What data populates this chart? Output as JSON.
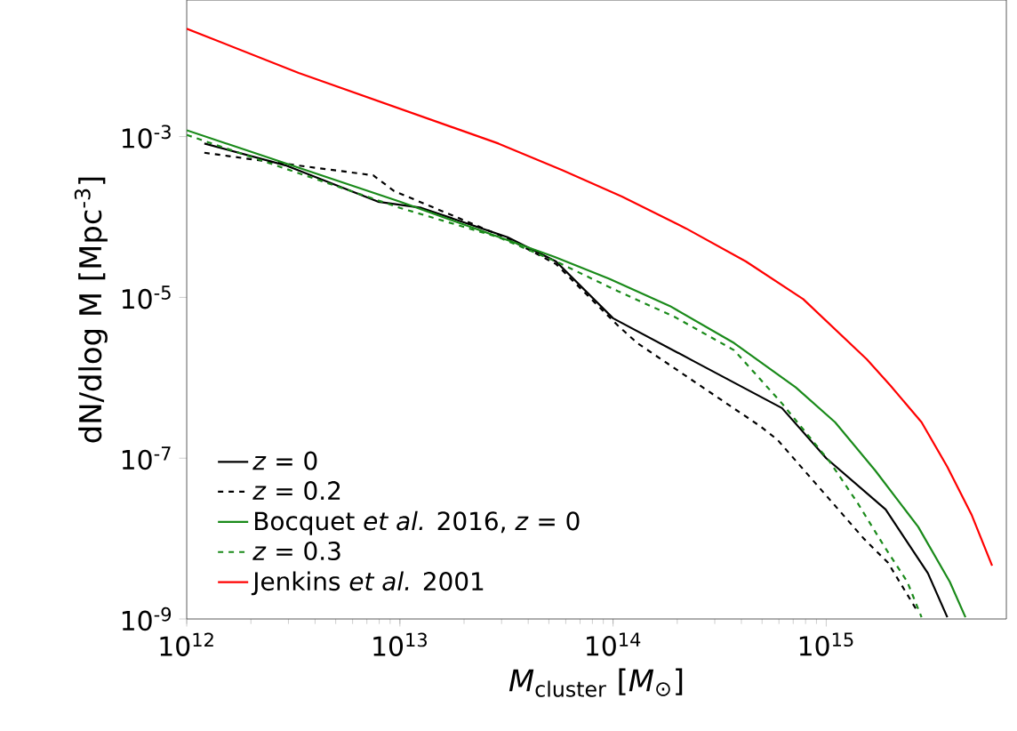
{
  "chart_data": {
    "type": "line",
    "xlabel": "*M*$_{cluster}$ [*M*$_{⊙}$]",
    "ylabel": "dN/dlog M [Mpc$^{-3}$]",
    "log": "xy",
    "xlim": [
      1000000000000.0,
      7000000000000000.0
    ],
    "ylim": [
      1e-09,
      0.05
    ],
    "xticks": [
      {
        "value": 1000000000000.0,
        "label": "10$^{12}$"
      },
      {
        "value": 10000000000000.0,
        "label": "10$^{13}$"
      },
      {
        "value": 100000000000000.0,
        "label": "10$^{14}$"
      },
      {
        "value": 1000000000000000.0,
        "label": "10$^{15}$"
      }
    ],
    "yticks": [
      {
        "value": 1e-09,
        "label": "10$^{-9}$"
      },
      {
        "value": 1e-07,
        "label": "10$^{-7}$"
      },
      {
        "value": 1e-05,
        "label": "10$^{-5}$"
      },
      {
        "value": 0.001,
        "label": "10$^{-3}$"
      }
    ],
    "grid": false,
    "legend": "bottom left",
    "series": [
      {
        "name": "*z* = 0",
        "color": "#000000",
        "line_style": "solid",
        "x": [
          1210000000000.0,
          2900000000000.0,
          7900000000000.0,
          12600000000000.0,
          32000000000000.0,
          54000000000000.0,
          100000000000000.0,
          240000000000000.0,
          620000000000000.0,
          1000000000000000.0,
          1900000000000000.0,
          3000000000000000.0,
          3700000000000000.0
        ],
        "values": [
          0.00082,
          0.00044,
          0.000155,
          0.00013,
          5.6e-05,
          2.8e-05,
          5.5e-06,
          1.6e-06,
          4.2e-07,
          1e-07,
          2.3e-08,
          3.7e-09,
          1.05e-09
        ]
      },
      {
        "name": "*z* = 0.2",
        "color": "#000000",
        "line_style": "dashed",
        "x": [
          1210000000000.0,
          2400000000000.0,
          7500000000000.0,
          9400000000000.0,
          32000000000000.0,
          54000000000000.0,
          105000000000000.0,
          130000000000000.0,
          490000000000000.0,
          590000000000000.0,
          1500000000000000.0,
          1950000000000000.0,
          2700000000000000.0
        ],
        "values": [
          0.00063,
          0.00049,
          0.00033,
          0.00021,
          5.4e-05,
          2.6e-05,
          4.5e-06,
          2.7e-06,
          2.5e-07,
          1.7e-07,
          1e-08,
          5e-09,
          1.2e-09
        ]
      },
      {
        "name": "Bocquet *et al.* 2016, *z* = 0",
        "color": "#1a8a1a",
        "line_style": "solid",
        "x": [
          1000000000000.0,
          10000000000000.0,
          53000000000000.0,
          96000000000000.0,
          185000000000000.0,
          370000000000000.0,
          720000000000000.0,
          1100000000000000.0,
          1700000000000000.0,
          2700000000000000.0,
          3800000000000000.0,
          4500000000000000.0
        ],
        "values": [
          0.0012,
          0.000155,
          3.2e-05,
          1.7e-05,
          7.8e-06,
          2.7e-06,
          7.6e-07,
          2.8e-07,
          7e-08,
          1.4e-08,
          2.9e-09,
          1.05e-09
        ]
      },
      {
        "name": "*z* = 0.3",
        "color": "#1a8a1a",
        "line_style": "dashed",
        "x": [
          1000000000000.0,
          10000000000000.0,
          29000000000000.0,
          54000000000000.0,
          105000000000000.0,
          195000000000000.0,
          370000000000000.0,
          620000000000000.0,
          1040000000000000.0,
          1400000000000000.0,
          1850000000000000.0,
          2400000000000000.0,
          2800000000000000.0
        ],
        "values": [
          0.00105,
          0.00013,
          5.6e-05,
          2.8e-05,
          1.2e-05,
          5.7e-06,
          2.2e-06,
          4.8e-07,
          9e-08,
          2.8e-08,
          8.4e-09,
          2.9e-09,
          1.05e-09
        ]
      },
      {
        "name": "Jenkins *et al.* 2001",
        "color": "#ff0000",
        "line_style": "solid",
        "x": [
          1000000000000.0,
          3350000000000.0,
          29000000000000.0,
          58000000000000.0,
          110000000000000.0,
          220000000000000.0,
          420000000000000.0,
          780000000000000.0,
          1550000000000000.0,
          2000000000000000.0,
          2800000000000000.0,
          3700000000000000.0,
          4800000000000000.0,
          6000000000000000.0
        ],
        "values": [
          0.022,
          0.0062,
          0.00082,
          0.00038,
          0.00018,
          7.2e-05,
          2.8e-05,
          9.5e-06,
          1.7e-06,
          8e-07,
          2.8e-07,
          7.8e-08,
          2e-08,
          4.6e-09
        ]
      }
    ]
  }
}
